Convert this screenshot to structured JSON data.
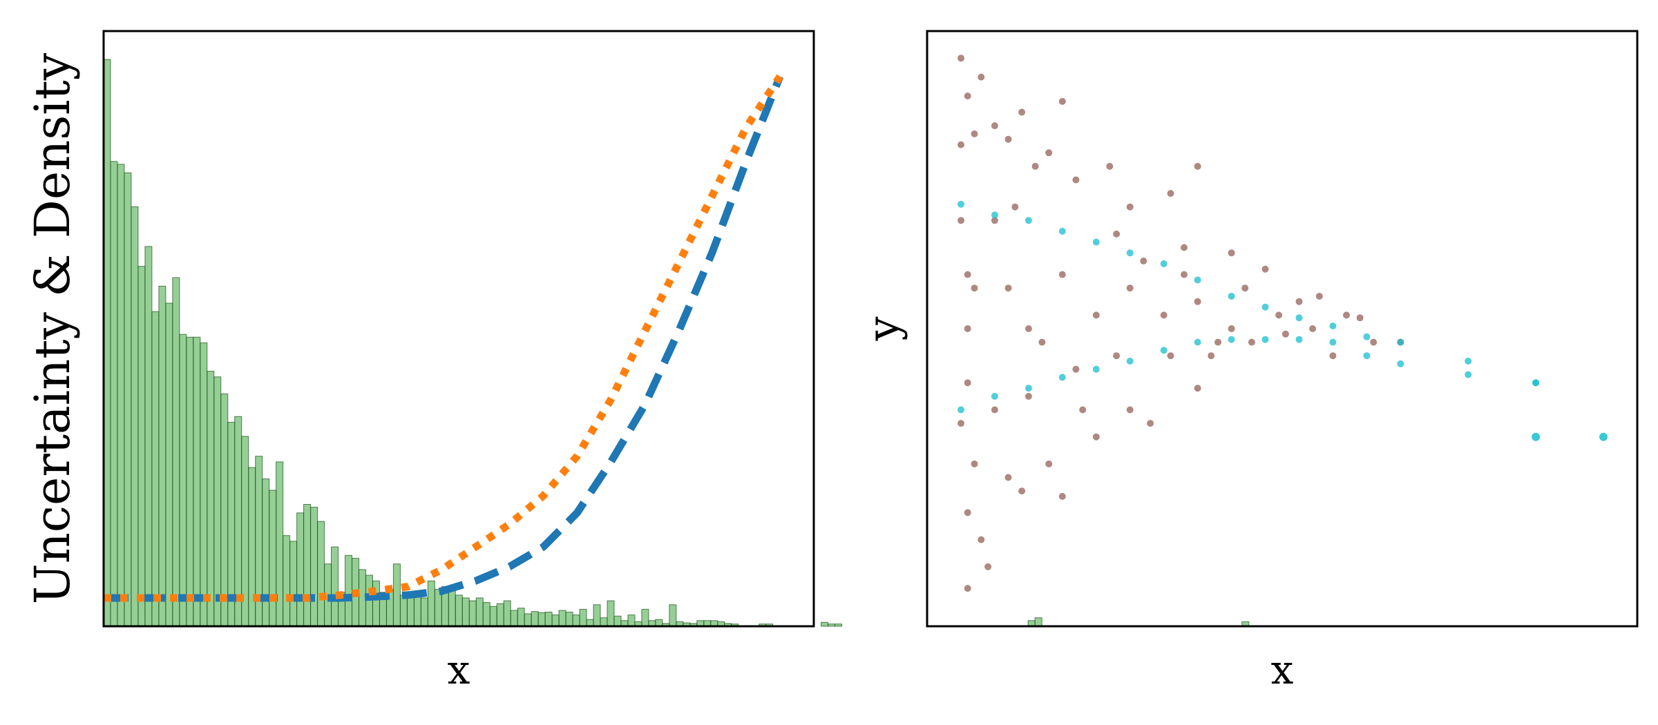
{
  "chart_data": [
    {
      "panel": "left",
      "type": "bar",
      "xlabel": "x",
      "ylabel": "Uncertainty & Density",
      "xlim": [
        0,
        1.05
      ],
      "ylim": [
        0,
        1.05
      ],
      "grid": false,
      "ticks_visible": false,
      "colors": {
        "histogram": "#2ca02c",
        "dashed_curve": "#1f77b4",
        "dotted_curve": "#ff7f0e"
      },
      "histogram": {
        "bin_start": 0.0,
        "bin_width": 0.0102,
        "values": [
          1.0,
          0.82,
          0.815,
          0.8,
          0.74,
          0.635,
          0.67,
          0.555,
          0.6,
          0.57,
          0.615,
          0.515,
          0.51,
          0.51,
          0.5,
          0.45,
          0.44,
          0.41,
          0.36,
          0.37,
          0.335,
          0.28,
          0.3,
          0.26,
          0.24,
          0.29,
          0.16,
          0.15,
          0.2,
          0.215,
          0.21,
          0.185,
          0.11,
          0.14,
          0.06,
          0.125,
          0.12,
          0.1,
          0.09,
          0.08,
          0.06,
          0.065,
          0.11,
          0.055,
          0.06,
          0.055,
          0.05,
          0.08,
          0.065,
          0.07,
          0.07,
          0.055,
          0.05,
          0.045,
          0.05,
          0.042,
          0.035,
          0.04,
          0.045,
          0.028,
          0.032,
          0.022,
          0.026,
          0.024,
          0.025,
          0.02,
          0.028,
          0.025,
          0.02,
          0.03,
          0.012,
          0.038,
          0.015,
          0.045,
          0.018,
          0.01,
          0.02,
          0.008,
          0.03,
          0.01,
          0.012,
          0.005,
          0.038,
          0.008,
          0.006,
          0.005,
          0.01,
          0.01,
          0.01,
          0.008,
          0.005,
          0.004,
          0,
          0,
          0,
          0.004,
          0.004,
          0,
          0,
          0,
          0,
          0,
          0,
          0,
          0.007,
          0.004,
          0.004,
          0,
          0,
          0,
          0,
          0,
          0,
          0,
          0,
          0,
          0,
          0,
          0,
          0,
          0,
          0,
          0,
          0,
          0,
          0,
          0,
          0,
          0,
          0,
          0,
          0,
          0,
          0,
          0.01,
          0.015,
          0,
          0,
          0,
          0,
          0,
          0,
          0,
          0,
          0,
          0,
          0,
          0,
          0,
          0,
          0,
          0,
          0,
          0,
          0,
          0,
          0,
          0,
          0,
          0,
          0,
          0,
          0,
          0,
          0,
          0.008
        ]
      },
      "series": [
        {
          "style": "dashed",
          "color": "#1f77b4",
          "x": [
            0.0,
            0.1,
            0.2,
            0.3,
            0.35,
            0.4,
            0.45,
            0.5,
            0.55,
            0.6,
            0.65,
            0.7,
            0.75,
            0.8,
            0.85,
            0.9,
            0.95,
            1.0
          ],
          "y": [
            0.05,
            0.05,
            0.05,
            0.05,
            0.05,
            0.052,
            0.055,
            0.062,
            0.08,
            0.105,
            0.14,
            0.2,
            0.29,
            0.39,
            0.52,
            0.66,
            0.82,
            0.97
          ]
        },
        {
          "style": "dotted",
          "color": "#ff7f0e",
          "x": [
            0.0,
            0.1,
            0.2,
            0.3,
            0.35,
            0.4,
            0.45,
            0.5,
            0.55,
            0.6,
            0.65,
            0.7,
            0.75,
            0.8,
            0.85,
            0.9,
            0.95,
            1.0
          ],
          "y": [
            0.05,
            0.05,
            0.05,
            0.05,
            0.055,
            0.062,
            0.07,
            0.1,
            0.14,
            0.18,
            0.23,
            0.3,
            0.4,
            0.52,
            0.64,
            0.76,
            0.88,
            0.97
          ]
        }
      ]
    },
    {
      "panel": "right",
      "type": "scatter",
      "xlabel": "x",
      "ylabel": "y",
      "xlim": [
        0,
        1.05
      ],
      "ylim": [
        -1.1,
        1.1
      ],
      "grid": false,
      "ticks_visible": false,
      "colors": {
        "noisy": "#8c564b",
        "clean": "#17becf"
      },
      "noisy_points": [
        [
          0.05,
          1.0
        ],
        [
          0.06,
          0.86
        ],
        [
          0.05,
          0.68
        ],
        [
          0.07,
          0.72
        ],
        [
          0.08,
          0.93
        ],
        [
          0.1,
          0.75
        ],
        [
          0.12,
          0.7
        ],
        [
          0.14,
          0.8
        ],
        [
          0.16,
          0.6
        ],
        [
          0.18,
          0.65
        ],
        [
          0.22,
          0.55
        ],
        [
          0.27,
          0.6
        ],
        [
          0.3,
          0.45
        ],
        [
          0.36,
          0.5
        ],
        [
          0.38,
          0.3
        ],
        [
          0.45,
          0.28
        ],
        [
          0.5,
          0.22
        ],
        [
          0.55,
          0.1
        ],
        [
          0.62,
          0.05
        ],
        [
          0.66,
          -0.05
        ],
        [
          0.7,
          -0.05
        ],
        [
          0.05,
          0.4
        ],
        [
          0.06,
          0.2
        ],
        [
          0.06,
          0.0
        ],
        [
          0.06,
          -0.2
        ],
        [
          0.05,
          -0.35
        ],
        [
          0.07,
          -0.5
        ],
        [
          0.06,
          -0.68
        ],
        [
          0.08,
          -0.78
        ],
        [
          0.06,
          -0.96
        ],
        [
          0.12,
          -0.55
        ],
        [
          0.14,
          -0.6
        ],
        [
          0.18,
          -0.5
        ],
        [
          0.2,
          -0.62
        ],
        [
          0.25,
          -0.4
        ],
        [
          0.3,
          -0.3
        ],
        [
          0.33,
          -0.35
        ],
        [
          0.4,
          -0.22
        ],
        [
          0.42,
          -0.1
        ],
        [
          0.48,
          -0.05
        ],
        [
          0.58,
          0.12
        ],
        [
          0.1,
          0.4
        ],
        [
          0.12,
          0.15
        ],
        [
          0.15,
          0.0
        ],
        [
          0.2,
          0.2
        ],
        [
          0.25,
          0.05
        ],
        [
          0.3,
          0.15
        ],
        [
          0.35,
          0.05
        ],
        [
          0.4,
          0.1
        ],
        [
          0.45,
          0.0
        ],
        [
          0.52,
          0.05
        ],
        [
          0.15,
          -0.25
        ],
        [
          0.22,
          -0.15
        ],
        [
          0.28,
          0.35
        ],
        [
          0.09,
          -0.88
        ],
        [
          0.4,
          0.6
        ],
        [
          0.2,
          0.84
        ],
        [
          0.07,
          0.15
        ],
        [
          0.1,
          -0.3
        ],
        [
          0.13,
          0.45
        ],
        [
          0.17,
          -0.05
        ],
        [
          0.23,
          -0.3
        ],
        [
          0.28,
          -0.1
        ],
        [
          0.32,
          0.25
        ],
        [
          0.36,
          -0.1
        ],
        [
          0.38,
          0.2
        ],
        [
          0.43,
          -0.05
        ],
        [
          0.47,
          0.15
        ],
        [
          0.53,
          -0.02
        ],
        [
          0.57,
          0.0
        ],
        [
          0.6,
          -0.1
        ],
        [
          0.64,
          0.04
        ]
      ],
      "clean_points": [
        [
          0.05,
          0.46
        ],
        [
          0.1,
          0.42
        ],
        [
          0.15,
          0.4
        ],
        [
          0.2,
          0.36
        ],
        [
          0.25,
          0.32
        ],
        [
          0.3,
          0.28
        ],
        [
          0.35,
          0.24
        ],
        [
          0.4,
          0.18
        ],
        [
          0.45,
          0.12
        ],
        [
          0.5,
          0.08
        ],
        [
          0.55,
          0.04
        ],
        [
          0.6,
          0.01
        ],
        [
          0.65,
          -0.03
        ],
        [
          0.7,
          -0.05
        ],
        [
          0.8,
          -0.12
        ],
        [
          0.9,
          -0.2
        ],
        [
          0.05,
          -0.3
        ],
        [
          0.1,
          -0.25
        ],
        [
          0.15,
          -0.22
        ],
        [
          0.2,
          -0.18
        ],
        [
          0.25,
          -0.15
        ],
        [
          0.3,
          -0.12
        ],
        [
          0.35,
          -0.08
        ],
        [
          0.4,
          -0.05
        ],
        [
          0.45,
          -0.04
        ],
        [
          0.5,
          -0.04
        ],
        [
          0.55,
          -0.04
        ],
        [
          0.6,
          -0.05
        ],
        [
          0.65,
          -0.1
        ],
        [
          0.7,
          -0.13
        ],
        [
          0.8,
          -0.17
        ],
        [
          0.9,
          -0.2
        ]
      ],
      "outliers": [
        [
          0.9,
          -0.4
        ],
        [
          1.0,
          -0.4
        ]
      ]
    }
  ]
}
